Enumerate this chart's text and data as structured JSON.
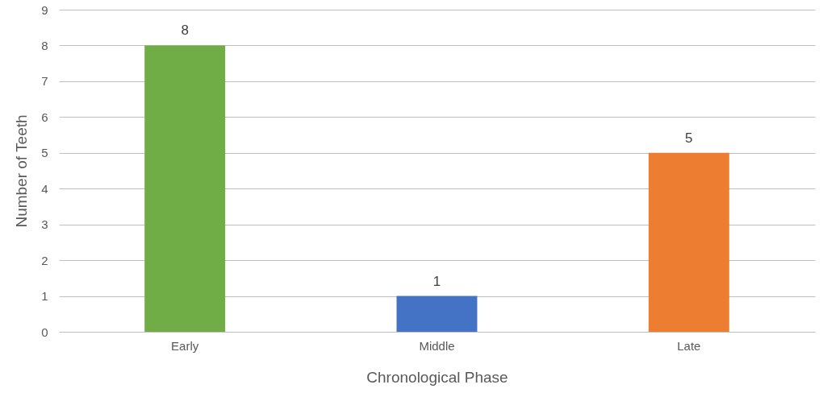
{
  "chart_data": {
    "type": "bar",
    "xlabel": "Chronological Phase",
    "ylabel": "Number of Teeth",
    "categories": [
      "Early",
      "Middle",
      "Late"
    ],
    "values": [
      8,
      1,
      5
    ],
    "colors": [
      "#70ad47",
      "#4472c4",
      "#ed7d31"
    ],
    "ylim": [
      0,
      9
    ],
    "yticks": [
      0,
      1,
      2,
      3,
      4,
      5,
      6,
      7,
      8,
      9
    ],
    "grid": "y",
    "data_labels": true
  }
}
